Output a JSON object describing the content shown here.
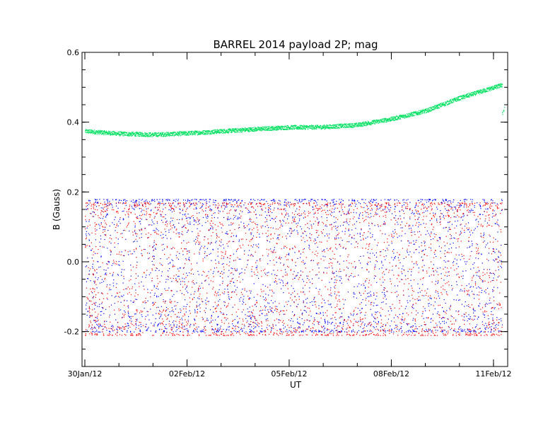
{
  "chart_data": {
    "type": "scatter",
    "title": "BARREL 2014 payload 2P; mag",
    "xlabel": "UT",
    "ylabel": "B (Gauss)",
    "x_ticks": [
      "30Jan/12",
      "02Feb/12",
      "05Feb/12",
      "08Feb/12",
      "11Feb/12"
    ],
    "x_range": [
      "2012-01-29T22:00",
      "2012-02-11T10:00"
    ],
    "x_data_range": [
      "2012-01-30T00:00",
      "2012-02-11T06:00"
    ],
    "y_ticks": [
      "0.6",
      "0.4",
      "0.2",
      "0.0",
      "-0.2"
    ],
    "ylim": [
      -0.3,
      0.6
    ],
    "grid": false,
    "series": [
      {
        "color": "#00e060",
        "points": [
          [
            "2012-01-30",
            0.375
          ],
          [
            "2012-01-31",
            0.368
          ],
          [
            "2012-02-01",
            0.365
          ],
          [
            "2012-02-02",
            0.369
          ],
          [
            "2012-02-03",
            0.375
          ],
          [
            "2012-02-04",
            0.381
          ],
          [
            "2012-02-05",
            0.386
          ],
          [
            "2012-02-06",
            0.387
          ],
          [
            "2012-02-07",
            0.393
          ],
          [
            "2012-02-08",
            0.41
          ],
          [
            "2012-02-09",
            0.433
          ],
          [
            "2012-02-10",
            0.47
          ],
          [
            "2012-02-11",
            0.5
          ]
        ]
      },
      {
        "color": "#0000ff",
        "range": [
          -0.2,
          0.18
        ]
      },
      {
        "color": "#ff0000",
        "range": [
          -0.21,
          0.17
        ]
      }
    ]
  }
}
